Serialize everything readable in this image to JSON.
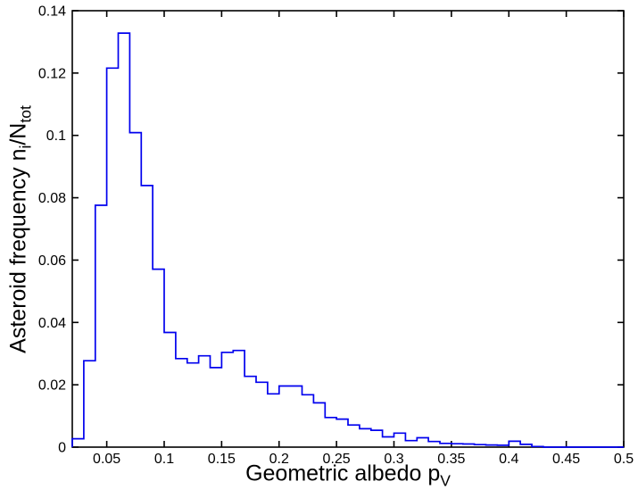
{
  "figure": {
    "background": "#ffffff",
    "xlabel": {
      "text": "Geometric albedo p",
      "sub": "V"
    },
    "ylabel": {
      "part1": "Asteroid frequency n",
      "sub1": "i",
      "part2": "/N",
      "sub2": "tot"
    }
  },
  "chart_data": {
    "type": "stairs-histogram",
    "title": "",
    "xlabel": "Geometric albedo p_V",
    "ylabel": "Asteroid frequency n_i/N_tot",
    "xlim": [
      0.02,
      0.5
    ],
    "ylim": [
      0,
      0.14
    ],
    "grid": false,
    "legend": "none",
    "line_color": "#0000ee",
    "axis_color": "#000000",
    "bin_start": 0.02,
    "bin_width": 0.01,
    "frequencies": [
      0.0027,
      0.0277,
      0.0776,
      0.1216,
      0.1328,
      0.1009,
      0.0839,
      0.0571,
      0.0368,
      0.0284,
      0.027,
      0.0293,
      0.0255,
      0.0304,
      0.031,
      0.0227,
      0.0208,
      0.0171,
      0.0196,
      0.0196,
      0.0168,
      0.0142,
      0.0095,
      0.009,
      0.0071,
      0.0059,
      0.0054,
      0.0033,
      0.0045,
      0.0021,
      0.003,
      0.0018,
      0.0012,
      0.0011,
      0.001,
      0.0008,
      0.0007,
      0.0006,
      0.0019,
      0.0009,
      0.0002,
      0,
      0,
      0,
      0,
      0,
      0,
      0
    ],
    "x_ticks": [
      0.05,
      0.1,
      0.15,
      0.2,
      0.25,
      0.3,
      0.35,
      0.4,
      0.45,
      0.5
    ],
    "x_tick_labels": [
      "0.05",
      "0.1",
      "0.15",
      "0.2",
      "0.25",
      "0.3",
      "0.35",
      "0.4",
      "0.45",
      "0.5"
    ],
    "y_ticks": [
      0,
      0.02,
      0.04,
      0.06,
      0.08,
      0.1,
      0.12,
      0.14
    ],
    "y_tick_labels": [
      "0",
      "0.02",
      "0.04",
      "0.06",
      "0.08",
      "0.1",
      "0.12",
      "0.14"
    ]
  }
}
